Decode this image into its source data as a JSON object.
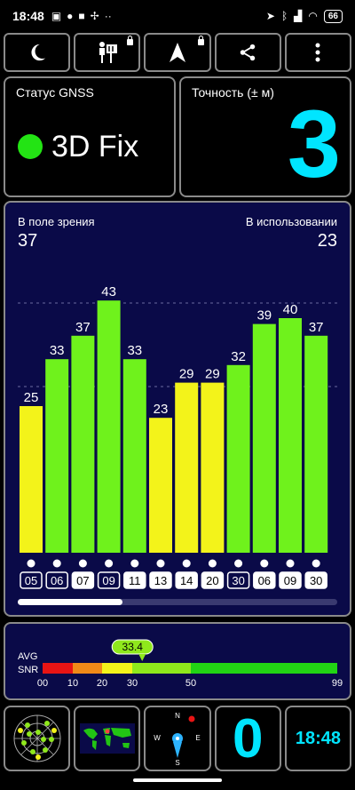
{
  "status_bar": {
    "time": "18:48",
    "left_icons": [
      "nfc-icon",
      "app-icon",
      "video-icon",
      "fan-icon",
      "more-dots-icon"
    ],
    "right_icons": [
      "location-icon",
      "bluetooth-icon",
      "signal-icon",
      "wifi-icon"
    ],
    "battery": "66"
  },
  "toolbar": {
    "buttons": [
      {
        "name": "night-mode-button",
        "icon": "moon-icon",
        "locked": false
      },
      {
        "name": "map-person-button",
        "icon": "person-map-icon",
        "locked": true
      },
      {
        "name": "navigate-button",
        "icon": "navigation-arrow-icon",
        "locked": true
      },
      {
        "name": "share-button",
        "icon": "share-icon",
        "locked": false
      },
      {
        "name": "menu-button",
        "icon": "more-vertical-icon",
        "locked": false
      }
    ]
  },
  "gnss": {
    "label": "Статус GNSS",
    "fix": "3D Fix",
    "fix_color": "#23e414"
  },
  "accuracy": {
    "label": "Точность (± м)",
    "value": "3"
  },
  "satellites": {
    "in_view_label": "В поле зрения",
    "in_view": "37",
    "in_use_label": "В использовании",
    "in_use": "23"
  },
  "chart_data": {
    "type": "bar",
    "categories": [
      "05",
      "06",
      "07",
      "09",
      "11",
      "13",
      "14",
      "20",
      "30",
      "06",
      "09",
      "30"
    ],
    "values": [
      25,
      33,
      37,
      43,
      33,
      23,
      29,
      29,
      32,
      39,
      40,
      37
    ],
    "colors": [
      "#f3f31a",
      "#6ff21c",
      "#6ff21c",
      "#6ff21c",
      "#6ff21c",
      "#f3f31a",
      "#f3f31a",
      "#f3f31a",
      "#6ff21c",
      "#6ff21c",
      "#6ff21c",
      "#6ff21c"
    ],
    "boxed": [
      true,
      true,
      false,
      true,
      false,
      false,
      false,
      false,
      true,
      false,
      false,
      false
    ],
    "ylim": [
      0,
      60
    ]
  },
  "snr": {
    "avg_label_1": "AVG",
    "avg_label_2": "SNR",
    "avg_value": 33.4,
    "avg_text": "33.4",
    "scale_labels": [
      "00",
      "10",
      "20",
      "30",
      "50",
      "99"
    ],
    "scale_values": [
      0,
      10,
      20,
      30,
      50,
      99
    ],
    "segments": [
      {
        "from": 0,
        "to": 10,
        "color": "#e81414"
      },
      {
        "from": 10,
        "to": 20,
        "color": "#f08a18"
      },
      {
        "from": 20,
        "to": 30,
        "color": "#f3f31a"
      },
      {
        "from": 30,
        "to": 50,
        "color": "#8fe81c"
      },
      {
        "from": 50,
        "to": 99,
        "color": "#22d414"
      }
    ]
  },
  "bottom": {
    "sky_view": "radar-icon",
    "world_map": "world-map-icon",
    "compass_labels": [
      "N",
      "W",
      "E",
      "S"
    ],
    "zero_value": "0",
    "clock": "18:48"
  },
  "colors": {
    "accent": "#00e5ff",
    "chart_bg": "#0a0a48"
  }
}
